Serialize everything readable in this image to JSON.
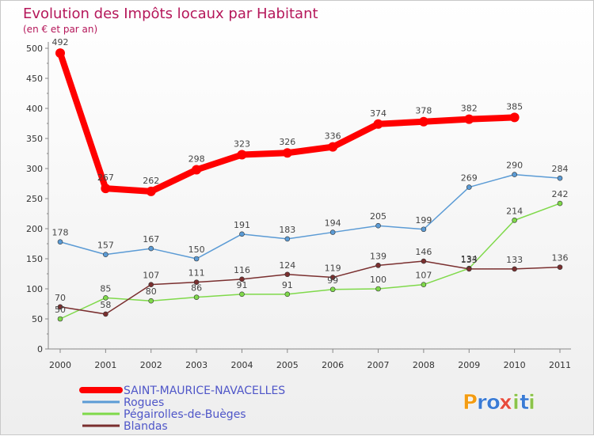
{
  "chart_data": {
    "type": "line",
    "title": "Evolution des Impôts locaux par Habitant",
    "subtitle": "(en € et par an)",
    "x": [
      "2000",
      "2001",
      "2002",
      "2003",
      "2004",
      "2005",
      "2006",
      "2007",
      "2008",
      "2009",
      "2010",
      "2011"
    ],
    "y_ticks": [
      "0",
      "50",
      "100",
      "150",
      "200",
      "250",
      "300",
      "350",
      "400",
      "450",
      "500"
    ],
    "ylim": [
      0,
      500
    ],
    "grid": false,
    "legend_position": "bottom-left",
    "series": [
      {
        "name": "SAINT-MAURICE-NAVACELLES",
        "color": "#ff0000",
        "values": [
          492,
          267,
          262,
          298,
          323,
          326,
          336,
          374,
          378,
          382,
          385,
          null
        ]
      },
      {
        "name": "Rogues",
        "color": "#5b9bd5",
        "values": [
          178,
          157,
          167,
          150,
          191,
          183,
          194,
          205,
          199,
          269,
          290,
          284
        ]
      },
      {
        "name": "Pégairolles-de-Buèges",
        "color": "#7fd94a",
        "values": [
          50,
          85,
          80,
          86,
          91,
          91,
          99,
          100,
          107,
          134,
          214,
          242
        ]
      },
      {
        "name": "Blandas",
        "color": "#7a2f2f",
        "values": [
          70,
          58,
          107,
          111,
          116,
          124,
          119,
          139,
          146,
          133,
          133,
          136
        ]
      }
    ]
  },
  "brand": {
    "name": "Proxiti",
    "letters": [
      "P",
      "r",
      "o",
      "x",
      "i",
      "t",
      "i"
    ],
    "colors": [
      "#f39c12",
      "#3a7bd5",
      "#3a7bd5",
      "#e74c3c",
      "#8bc34a",
      "#3a7bd5",
      "#8bc34a"
    ]
  }
}
